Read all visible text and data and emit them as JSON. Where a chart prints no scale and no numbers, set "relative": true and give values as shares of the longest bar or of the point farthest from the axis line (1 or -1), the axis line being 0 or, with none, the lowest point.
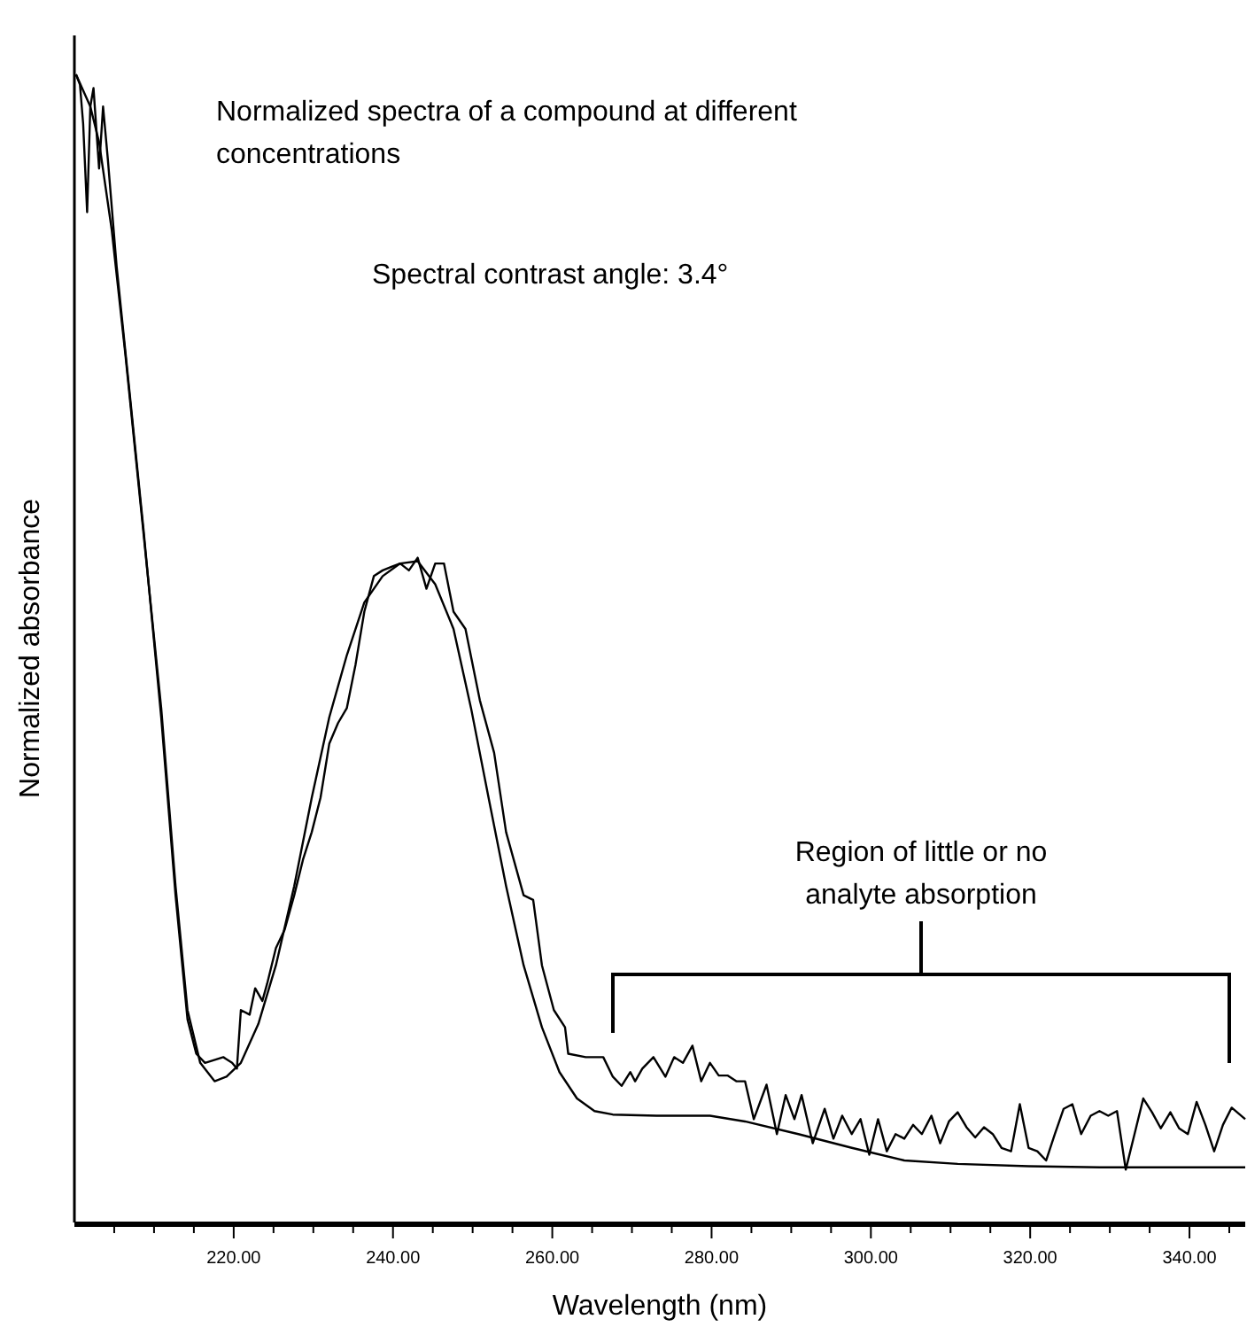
{
  "chart_data": {
    "type": "line",
    "title": "Normalized spectra of a compound at different concentrations",
    "xlabel": "Wavelength (nm)",
    "ylabel": "Normalized absorbance",
    "relative": true,
    "annotations": [
      "Spectral contrast angle: 3.4°",
      "Region of little or no analyte absorption"
    ],
    "xlim": [
      200,
      347
    ],
    "xticks": [
      {
        "value": 205,
        "label": null
      },
      {
        "value": 210,
        "label": null
      },
      {
        "value": 215,
        "label": null
      },
      {
        "value": 220,
        "label": "220.00"
      },
      {
        "value": 225,
        "label": null
      },
      {
        "value": 230,
        "label": null
      },
      {
        "value": 235,
        "label": null
      },
      {
        "value": 240,
        "label": "240.00"
      },
      {
        "value": 245,
        "label": null
      },
      {
        "value": 250,
        "label": null
      },
      {
        "value": 255,
        "label": null
      },
      {
        "value": 260,
        "label": "260.00"
      },
      {
        "value": 265,
        "label": null
      },
      {
        "value": 270,
        "label": null
      },
      {
        "value": 275,
        "label": null
      },
      {
        "value": 280,
        "label": "280.00"
      },
      {
        "value": 285,
        "label": null
      },
      {
        "value": 290,
        "label": null
      },
      {
        "value": 295,
        "label": null
      },
      {
        "value": 300,
        "label": "300.00"
      },
      {
        "value": 305,
        "label": null
      },
      {
        "value": 310,
        "label": null
      },
      {
        "value": 315,
        "label": null
      },
      {
        "value": 320,
        "label": "320.00"
      },
      {
        "value": 325,
        "label": null
      },
      {
        "value": 330,
        "label": null
      },
      {
        "value": 335,
        "label": null
      },
      {
        "value": 340,
        "label": "340.00"
      },
      {
        "value": 345,
        "label": null
      }
    ],
    "grid": false,
    "marker": "none",
    "line_style": "solid",
    "series": [
      {
        "color": "#000000",
        "x": [
          200.2,
          200.7,
          201.1,
          201.6,
          202.0,
          202.4,
          203.1,
          203.6,
          204.2,
          205.3,
          206.9,
          208.7,
          210.9,
          212.7,
          214.2,
          215.3,
          216.4,
          218.7,
          219.8,
          220.4,
          220.9,
          222.0,
          222.7,
          223.6,
          224.2,
          225.3,
          226.4,
          227.6,
          228.7,
          229.8,
          230.9,
          232.0,
          233.1,
          234.2,
          235.3,
          236.4,
          237.6,
          238.7,
          239.8,
          240.9,
          242.0,
          243.1,
          244.2,
          245.3,
          246.4,
          247.6,
          249.1,
          250.9,
          252.7,
          254.2,
          256.4,
          257.6,
          258.7,
          260.2,
          261.6,
          262.0,
          264.2,
          266.4,
          267.6,
          268.7,
          269.8,
          270.4,
          271.3,
          272.7,
          274.2,
          275.3,
          276.4,
          277.6,
          278.7,
          279.8,
          280.9,
          282.0,
          283.1,
          284.2,
          285.3,
          286.9,
          288.2,
          289.3,
          290.4,
          291.3,
          292.7,
          294.2,
          295.3,
          296.4,
          297.6,
          298.7,
          299.8,
          300.9,
          302.0,
          303.1,
          304.2,
          305.3,
          306.4,
          307.6,
          308.7,
          309.8,
          310.9,
          312.0,
          313.1,
          314.2,
          315.3,
          316.4,
          317.6,
          318.7,
          319.8,
          320.9,
          322.0,
          323.1,
          324.2,
          325.3,
          326.4,
          327.6,
          328.7,
          329.8,
          330.9,
          332.0,
          333.1,
          334.2,
          335.3,
          336.4,
          337.6,
          338.7,
          339.8,
          340.9,
          342.0,
          343.1,
          344.2,
          345.3,
          347
        ],
        "values": [
          1.0,
          0.991,
          0.957,
          0.88,
          0.972,
          0.988,
          0.918,
          0.972,
          0.926,
          0.833,
          0.725,
          0.602,
          0.44,
          0.285,
          0.177,
          0.147,
          0.139,
          0.144,
          0.139,
          0.134,
          0.185,
          0.181,
          0.204,
          0.193,
          0.208,
          0.239,
          0.255,
          0.285,
          0.316,
          0.34,
          0.37,
          0.417,
          0.435,
          0.448,
          0.486,
          0.532,
          0.563,
          0.568,
          0.571,
          0.574,
          0.568,
          0.579,
          0.552,
          0.574,
          0.574,
          0.532,
          0.517,
          0.455,
          0.409,
          0.34,
          0.285,
          0.281,
          0.224,
          0.185,
          0.17,
          0.147,
          0.144,
          0.144,
          0.127,
          0.119,
          0.131,
          0.123,
          0.134,
          0.144,
          0.127,
          0.144,
          0.139,
          0.154,
          0.123,
          0.139,
          0.128,
          0.128,
          0.123,
          0.123,
          0.09,
          0.12,
          0.077,
          0.111,
          0.09,
          0.111,
          0.069,
          0.099,
          0.073,
          0.093,
          0.077,
          0.09,
          0.059,
          0.09,
          0.062,
          0.077,
          0.073,
          0.085,
          0.077,
          0.093,
          0.069,
          0.088,
          0.096,
          0.083,
          0.074,
          0.083,
          0.077,
          0.065,
          0.062,
          0.103,
          0.065,
          0.062,
          0.054,
          0.077,
          0.099,
          0.103,
          0.077,
          0.093,
          0.097,
          0.093,
          0.097,
          0.046,
          0.077,
          0.108,
          0.096,
          0.082,
          0.096,
          0.082,
          0.077,
          0.105,
          0.085,
          0.062,
          0.085,
          0.1,
          0.09
        ]
      },
      {
        "color": "#000000",
        "x": [
          200.2,
          202.0,
          203.1,
          204.7,
          206.4,
          208.2,
          210.9,
          212.7,
          214.2,
          215.8,
          217.6,
          219.1,
          220.9,
          223.1,
          225.3,
          227.6,
          229.8,
          232.0,
          234.2,
          236.4,
          238.7,
          240.9,
          243.1,
          245.3,
          247.6,
          249.8,
          252.0,
          254.2,
          256.4,
          258.7,
          260.9,
          263.1,
          265.3,
          267.6,
          273.1,
          279.8,
          284.2,
          290.9,
          297.6,
          304.2,
          310.9,
          319.8,
          328.7,
          347
        ],
        "values": [
          1.0,
          0.972,
          0.941,
          0.864,
          0.756,
          0.633,
          0.448,
          0.293,
          0.185,
          0.139,
          0.123,
          0.127,
          0.139,
          0.173,
          0.224,
          0.293,
          0.37,
          0.44,
          0.494,
          0.54,
          0.563,
          0.574,
          0.576,
          0.556,
          0.517,
          0.448,
          0.37,
          0.293,
          0.224,
          0.17,
          0.131,
          0.108,
          0.097,
          0.094,
          0.093,
          0.093,
          0.088,
          0.077,
          0.065,
          0.054,
          0.051,
          0.049,
          0.048,
          0.048
        ]
      }
    ]
  }
}
